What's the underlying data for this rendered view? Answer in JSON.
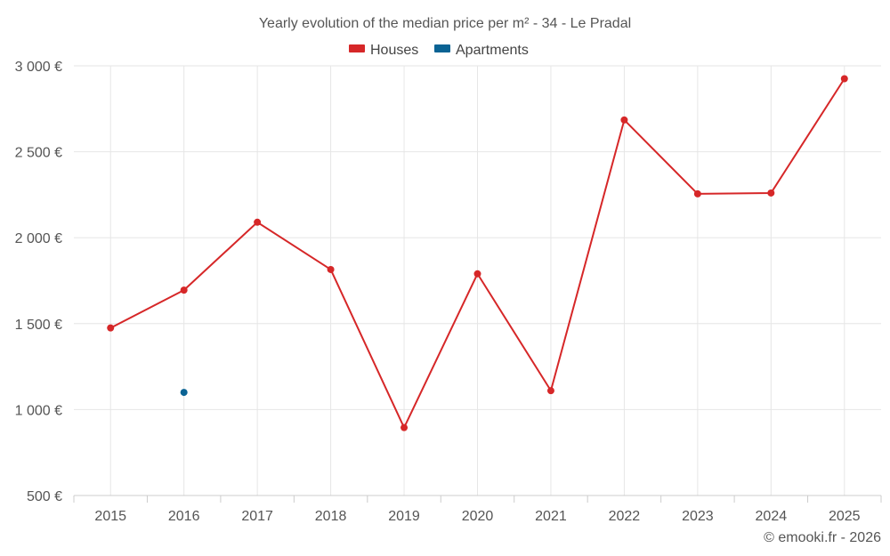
{
  "chart_data": {
    "type": "line",
    "title": "Yearly evolution of the median price per m² - 34 - Le Pradal",
    "categories": [
      "2015",
      "2016",
      "2017",
      "2018",
      "2019",
      "2020",
      "2021",
      "2022",
      "2023",
      "2024",
      "2025"
    ],
    "ylim": [
      500,
      3000
    ],
    "yticks": [
      500,
      1000,
      1500,
      2000,
      2500,
      3000
    ],
    "ytick_labels": [
      "500 €",
      "1 000 €",
      "1 500 €",
      "2 000 €",
      "2 500 €",
      "3 000 €"
    ],
    "grid": true,
    "legend_position": "top-center",
    "series": [
      {
        "name": "Houses",
        "color": "#d62728",
        "values": [
          1475,
          1695,
          2090,
          1815,
          895,
          1790,
          1110,
          2685,
          2255,
          2260,
          2925
        ]
      },
      {
        "name": "Apartments",
        "color": "#0a6394",
        "values": [
          null,
          1100,
          null,
          null,
          null,
          null,
          null,
          null,
          null,
          null,
          null
        ]
      }
    ],
    "credit": "© emooki.fr - 2026"
  }
}
